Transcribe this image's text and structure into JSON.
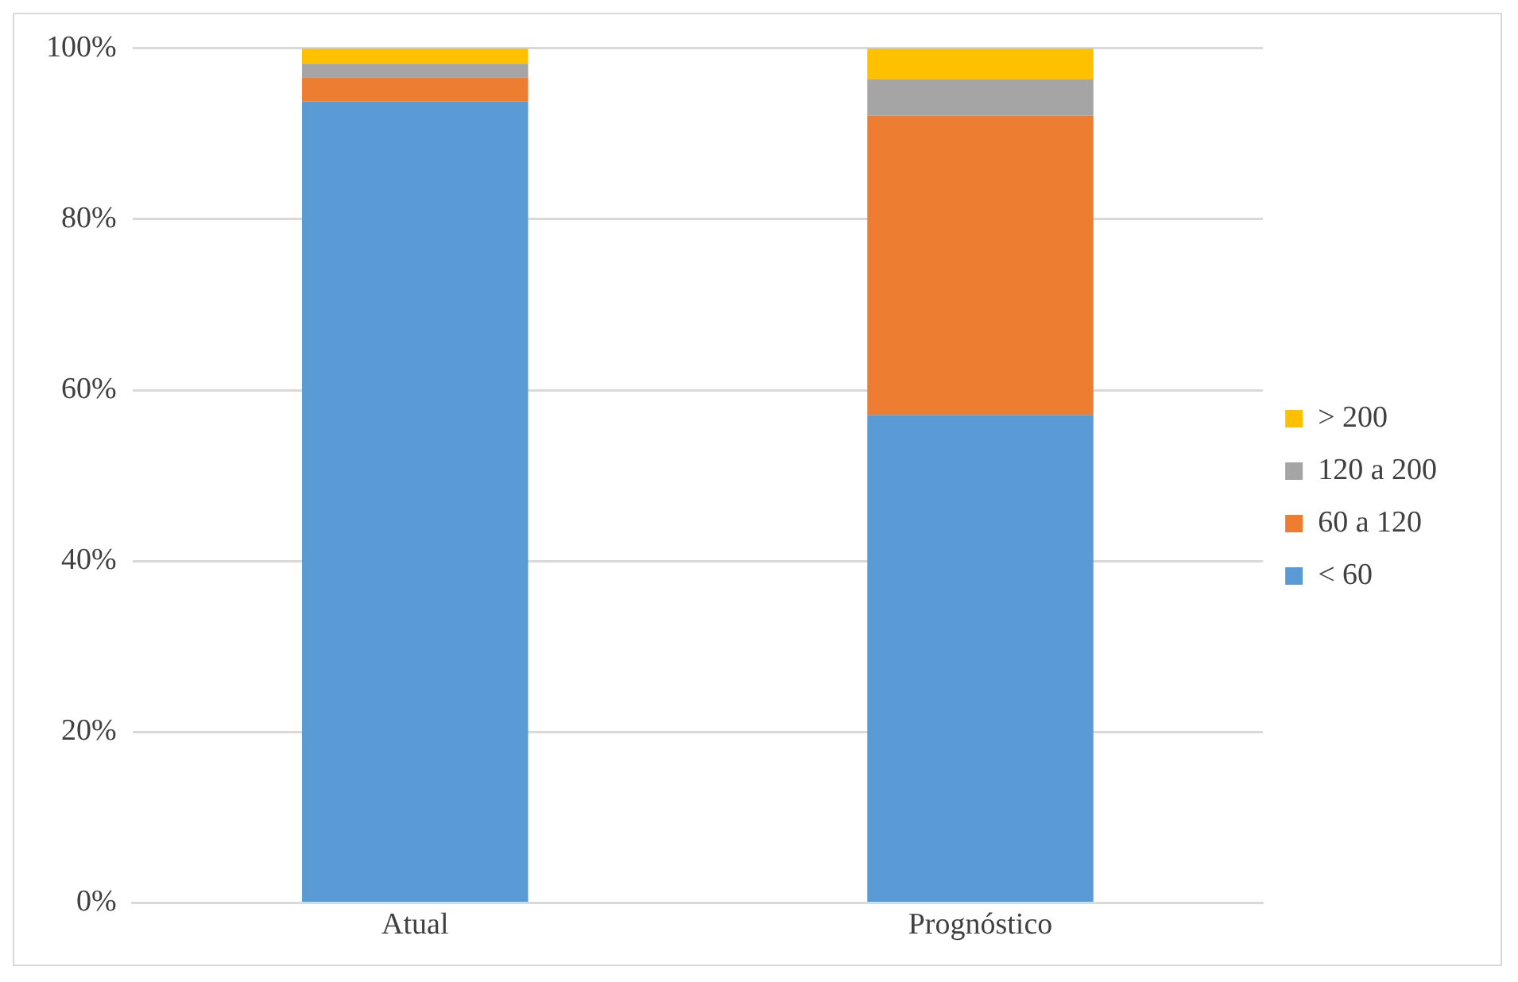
{
  "chart_data": {
    "type": "bar",
    "stacked": true,
    "categories": [
      "Atual",
      "Prognóstico"
    ],
    "series": [
      {
        "name": "< 60",
        "color": "#5b9bd5",
        "values": [
          93.8,
          57.1
        ]
      },
      {
        "name": "60 a 120",
        "color": "#ed7d31",
        "values": [
          2.8,
          35.0
        ]
      },
      {
        "name": "120 a 200",
        "color": "#a5a5a5",
        "values": [
          1.6,
          4.3
        ]
      },
      {
        "name": "> 200",
        "color": "#ffc000",
        "values": [
          1.8,
          3.6
        ]
      }
    ],
    "ylim": [
      0,
      100
    ],
    "yticks": [
      {
        "value": 0,
        "label": "0%"
      },
      {
        "value": 20,
        "label": "20%"
      },
      {
        "value": 40,
        "label": "40%"
      },
      {
        "value": 60,
        "label": "60%"
      },
      {
        "value": 80,
        "label": "80%"
      },
      {
        "value": 100,
        "label": "100%"
      }
    ],
    "grid": "y",
    "legend": "right"
  }
}
